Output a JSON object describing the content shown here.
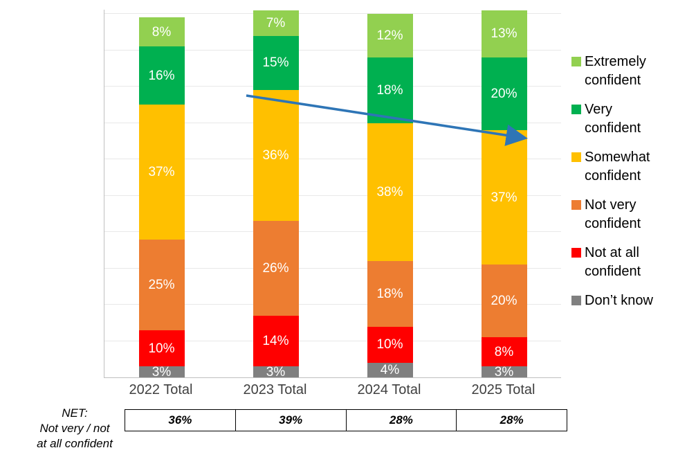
{
  "chart_data": {
    "type": "bar",
    "stacked": true,
    "value_suffix": "%",
    "categories": [
      "2022 Total",
      "2023 Total",
      "2024 Total",
      "2025 Total"
    ],
    "series": [
      {
        "name": "Don’t know",
        "color": "#808080",
        "values": [
          3,
          3,
          4,
          3
        ]
      },
      {
        "name": "Not at all confident",
        "color": "#FF0000",
        "values": [
          10,
          14,
          10,
          8
        ]
      },
      {
        "name": "Not very confident",
        "color": "#ED7D31",
        "values": [
          25,
          26,
          18,
          20
        ]
      },
      {
        "name": "Somewhat confident",
        "color": "#FFC000",
        "values": [
          37,
          36,
          38,
          37
        ]
      },
      {
        "name": "Very confident",
        "color": "#00B050",
        "values": [
          16,
          15,
          18,
          20
        ]
      },
      {
        "name": "Extremely confident",
        "color": "#92D050",
        "values": [
          8,
          7,
          12,
          13
        ]
      }
    ],
    "legend": {
      "position": "right",
      "items": [
        {
          "label": "Extremely confident",
          "color": "#92D050"
        },
        {
          "label": "Very confident",
          "color": "#00B050"
        },
        {
          "label": "Somewhat confident",
          "color": "#FFC000"
        },
        {
          "label": "Not very confident",
          "color": "#ED7D31"
        },
        {
          "label": "Not at all confident",
          "color": "#FF0000"
        },
        {
          "label": "Don’t know",
          "color": "#808080"
        }
      ]
    },
    "gridlines": true,
    "annotations": [
      {
        "type": "arrow",
        "meaning": "downward trend across years",
        "color": "#2E75B6"
      }
    ],
    "net_table": {
      "label_lines": [
        "NET:",
        "Not very / not",
        "at all confident"
      ],
      "values": [
        "36%",
        "39%",
        "28%",
        "28%"
      ]
    }
  }
}
